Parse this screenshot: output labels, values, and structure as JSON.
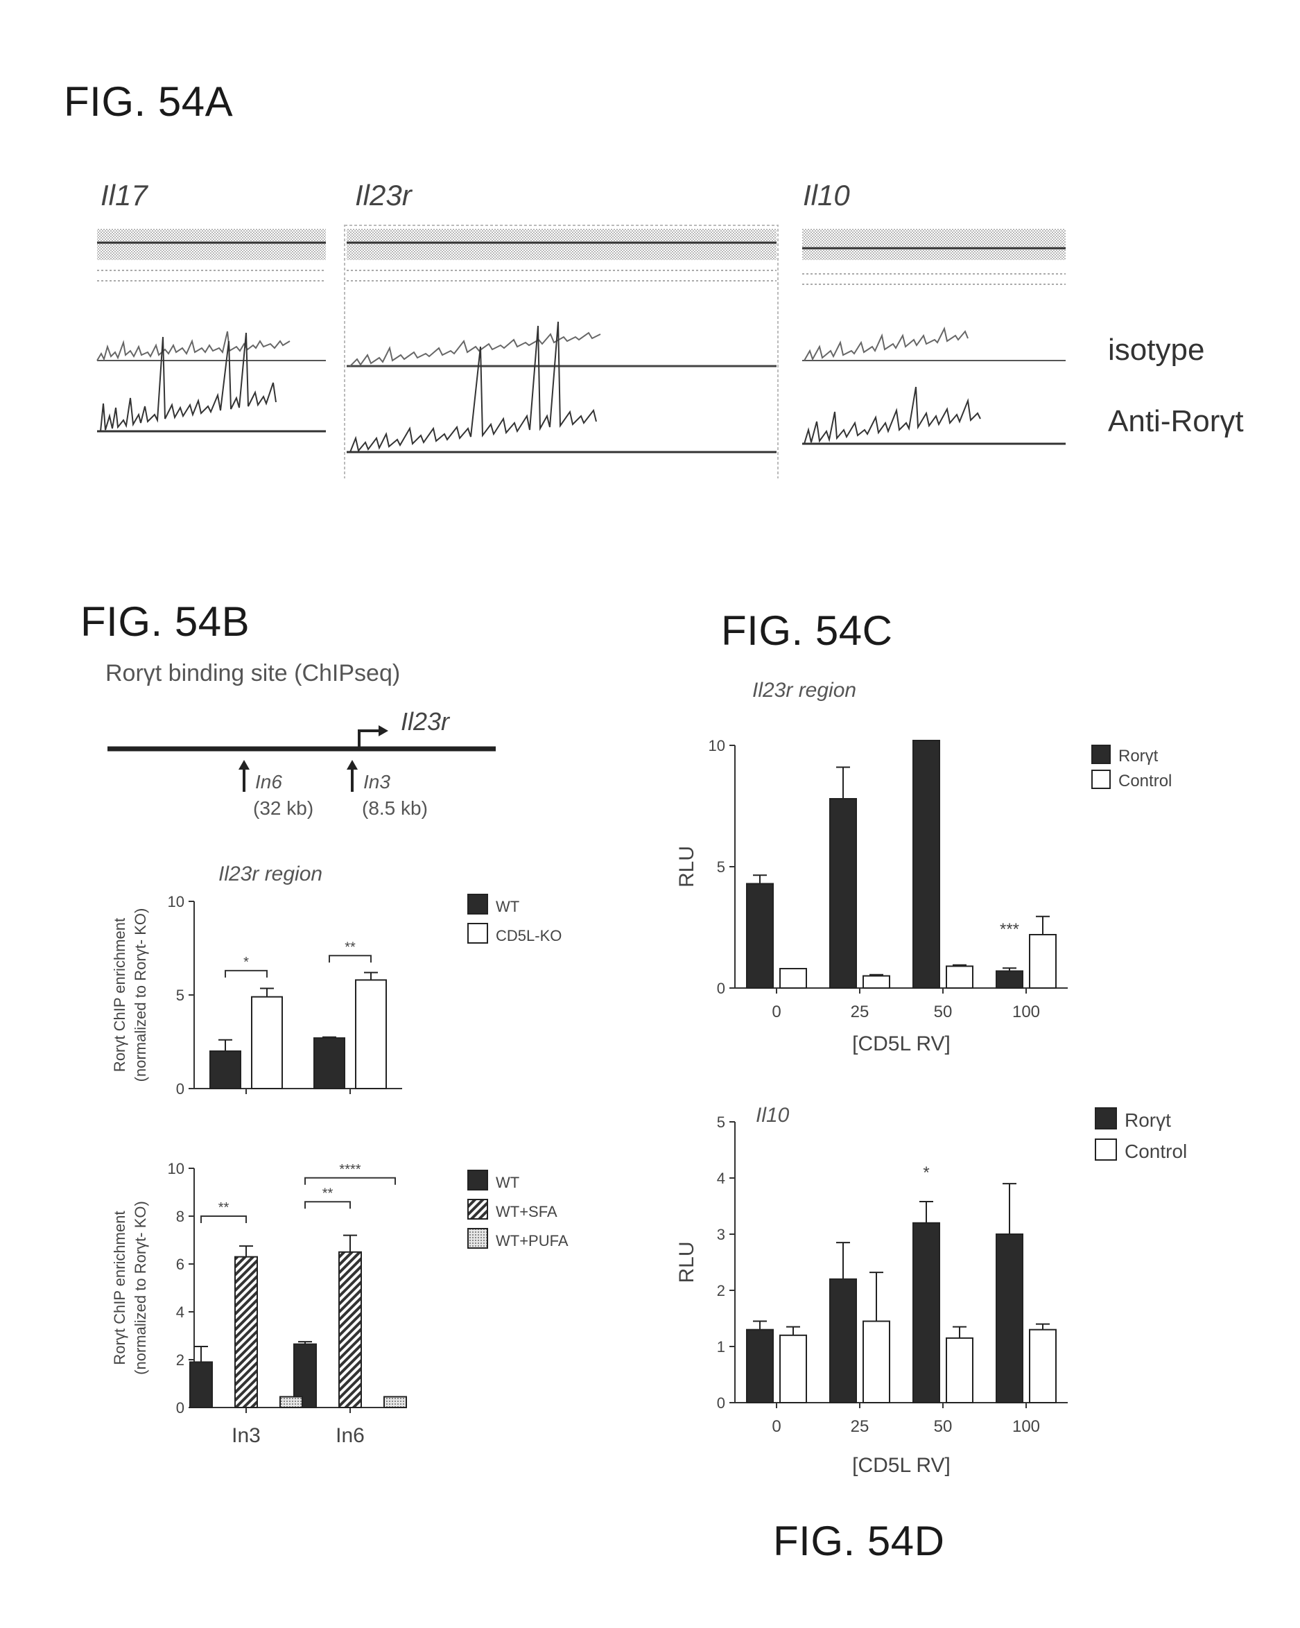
{
  "fig_a": {
    "title": "FIG. 54A",
    "genes": [
      "Il17",
      "Il23r",
      "Il10"
    ],
    "track_labels": [
      "isotype",
      "Anti-Rorγt"
    ]
  },
  "fig_b": {
    "title": "FIG. 54B",
    "subtitle": "Rorγt binding site (ChIPseq)",
    "gene": "Il23r",
    "sites": [
      {
        "name": "In6",
        "dist": "(32 kb)"
      },
      {
        "name": "In3",
        "dist": "(8.5 kb)"
      }
    ]
  },
  "fig_c": {
    "title": "FIG. 54C"
  },
  "fig_d": {
    "title": "FIG. 54D"
  },
  "colors": {
    "dark": "#2b2b2b",
    "white": "#ffffff",
    "pufa": "#d8d8d8"
  },
  "chart_data": [
    {
      "id": "b1",
      "type": "bar",
      "title": "Il23r region",
      "ylabel_lines": [
        "Rorγt ChIP enrichment",
        "(normalized to Rorγt- KO)"
      ],
      "ylim": [
        0,
        10
      ],
      "yticks": [
        0,
        5,
        10
      ],
      "categories": [
        "In3",
        "In6"
      ],
      "show_category_labels": false,
      "series": [
        {
          "name": "WT",
          "fill": "dark",
          "values": [
            2.0,
            2.7
          ],
          "errors": [
            0.6,
            0.05
          ]
        },
        {
          "name": "CD5L-KO",
          "fill": "white",
          "values": [
            4.9,
            5.8
          ],
          "errors": [
            0.45,
            0.4
          ]
        }
      ],
      "significance": [
        {
          "category": 0,
          "from": 0,
          "to": 1,
          "label": "*",
          "y": 6.3
        },
        {
          "category": 1,
          "from": 0,
          "to": 1,
          "label": "**",
          "y": 7.1
        }
      ],
      "legend": "top-right"
    },
    {
      "id": "b2",
      "type": "bar",
      "title": "",
      "ylabel_lines": [
        "Rorγt ChIP enrichment",
        "(normalized to Rorγt- KO)"
      ],
      "ylim": [
        0,
        10
      ],
      "yticks": [
        0,
        2,
        4,
        6,
        8,
        10
      ],
      "categories": [
        "In3",
        "In6"
      ],
      "show_category_labels": true,
      "series": [
        {
          "name": "WT",
          "fill": "dark",
          "values": [
            1.9,
            2.65
          ],
          "errors": [
            0.65,
            0.1
          ]
        },
        {
          "name": "WT+SFA",
          "fill": "hatch",
          "values": [
            6.3,
            6.5
          ],
          "errors": [
            0.45,
            0.7
          ]
        },
        {
          "name": "WT+PUFA",
          "fill": "dots",
          "values": [
            0.45,
            0.45
          ],
          "errors": [
            0,
            0
          ]
        }
      ],
      "significance": [
        {
          "category": 0,
          "from": 0,
          "to": 1,
          "label": "**",
          "y": 8.0
        },
        {
          "category": 1,
          "from": 0,
          "to": 1,
          "label": "**",
          "y": 8.6
        },
        {
          "category": 1,
          "from": 0,
          "to": 2,
          "label": "****",
          "y": 9.6
        }
      ],
      "legend": "top-right"
    },
    {
      "id": "c",
      "type": "bar",
      "title": "Il23r region",
      "ylabel": "RLU",
      "xlabel": "[CD5L RV]",
      "ylim": [
        0,
        10
      ],
      "yticks": [
        0,
        5,
        10
      ],
      "categories": [
        "0",
        "25",
        "50",
        "100"
      ],
      "show_category_labels": true,
      "series": [
        {
          "name": "Rorγt",
          "fill": "dark",
          "values": [
            4.3,
            7.8,
            10.2,
            0.7
          ],
          "errors": [
            0.35,
            1.3,
            0,
            0.12
          ]
        },
        {
          "name": "Control",
          "fill": "white",
          "values": [
            0.8,
            0.5,
            0.9,
            2.2
          ],
          "errors": [
            0,
            0.05,
            0.05,
            0.75
          ]
        }
      ],
      "annotations": [
        {
          "category": 3,
          "series": 0,
          "label": "***",
          "y": 2.2
        }
      ],
      "legend": "top-right"
    },
    {
      "id": "d",
      "type": "bar",
      "title": "Il10",
      "ylabel": "RLU",
      "xlabel": "[CD5L RV]",
      "ylim": [
        0,
        5
      ],
      "yticks": [
        0,
        1,
        2,
        3,
        4,
        5
      ],
      "categories": [
        "0",
        "25",
        "50",
        "100"
      ],
      "show_category_labels": true,
      "series": [
        {
          "name": "Rorγt",
          "fill": "dark",
          "values": [
            1.3,
            2.2,
            3.2,
            3.0
          ],
          "errors": [
            0.15,
            0.65,
            0.38,
            0.9
          ]
        },
        {
          "name": "Control",
          "fill": "white",
          "values": [
            1.2,
            1.45,
            1.15,
            1.3
          ],
          "errors": [
            0.15,
            0.87,
            0.2,
            0.1
          ]
        }
      ],
      "annotations": [
        {
          "category": 2,
          "series": 0,
          "label": "*",
          "y": 4.0
        }
      ],
      "legend": "top-right"
    }
  ]
}
